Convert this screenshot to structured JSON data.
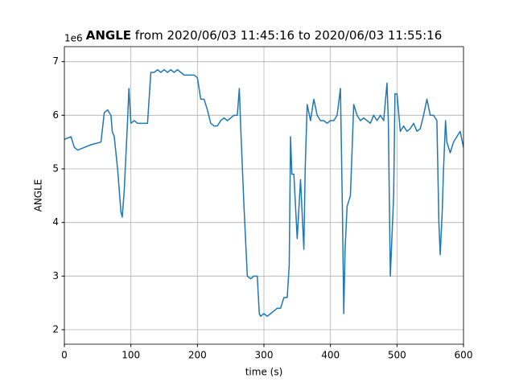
{
  "chart_data": {
    "type": "line",
    "title": {
      "name": "ANGLE",
      "text": "from 2020/06/03 11:45:16 to 2020/06/03 11:55:16"
    },
    "x_label": "time (s)",
    "y_label": "ANGLE",
    "y_offset": "1e6",
    "x": [
      0,
      10,
      15,
      20,
      30,
      40,
      55,
      60,
      65,
      70,
      72,
      75,
      80,
      85,
      87,
      90,
      95,
      97,
      100,
      105,
      110,
      115,
      120,
      125,
      130,
      135,
      140,
      145,
      150,
      155,
      160,
      165,
      170,
      175,
      180,
      185,
      190,
      195,
      200,
      205,
      210,
      215,
      220,
      225,
      230,
      235,
      240,
      245,
      250,
      255,
      260,
      263,
      265,
      270,
      275,
      280,
      285,
      290,
      293,
      295,
      300,
      305,
      310,
      315,
      320,
      325,
      330,
      335,
      338,
      340,
      342,
      345,
      350,
      355,
      360,
      362,
      365,
      370,
      375,
      380,
      385,
      390,
      395,
      400,
      405,
      410,
      415,
      418,
      420,
      422,
      425,
      430,
      435,
      440,
      445,
      450,
      455,
      460,
      465,
      470,
      475,
      480,
      485,
      487,
      490,
      495,
      497,
      500,
      505,
      510,
      515,
      520,
      525,
      530,
      535,
      540,
      545,
      550,
      555,
      560,
      563,
      565,
      568,
      570,
      573,
      575,
      580,
      585,
      590,
      595,
      600
    ],
    "series": [
      {
        "name": "ANGLE",
        "color": "#1f77b4",
        "values": [
          5.55,
          5.6,
          5.4,
          5.35,
          5.4,
          5.45,
          5.5,
          6.05,
          6.1,
          6.0,
          5.7,
          5.6,
          5.0,
          4.2,
          4.1,
          4.6,
          5.9,
          6.5,
          5.85,
          5.9,
          5.85,
          5.85,
          5.85,
          5.85,
          6.8,
          6.8,
          6.85,
          6.8,
          6.85,
          6.8,
          6.85,
          6.8,
          6.85,
          6.8,
          6.75,
          6.75,
          6.75,
          6.75,
          6.7,
          6.3,
          6.3,
          6.1,
          5.85,
          5.8,
          5.8,
          5.9,
          5.95,
          5.9,
          5.95,
          6.0,
          6.0,
          6.5,
          5.8,
          4.3,
          3.0,
          2.95,
          3.0,
          3.0,
          2.3,
          2.25,
          2.3,
          2.25,
          2.3,
          2.35,
          2.4,
          2.4,
          2.6,
          2.6,
          3.2,
          5.6,
          4.9,
          4.9,
          3.7,
          4.8,
          3.5,
          5.0,
          6.2,
          5.9,
          6.3,
          6.0,
          5.9,
          5.9,
          5.85,
          5.9,
          5.9,
          6.0,
          6.5,
          4.2,
          2.3,
          3.5,
          4.3,
          4.5,
          6.2,
          6.0,
          5.9,
          5.95,
          5.9,
          5.85,
          6.0,
          5.9,
          6.0,
          5.9,
          6.6,
          5.9,
          3.0,
          4.5,
          6.4,
          6.4,
          5.7,
          5.8,
          5.7,
          5.75,
          5.85,
          5.7,
          5.75,
          6.0,
          6.3,
          6.0,
          6.0,
          5.9,
          4.0,
          3.4,
          4.2,
          5.0,
          5.9,
          5.5,
          5.3,
          5.5,
          5.6,
          5.7,
          5.4
        ]
      }
    ],
    "xlim": [
      0,
      600
    ],
    "xticks": [
      0,
      100,
      200,
      300,
      400,
      500,
      600
    ],
    "ylim": [
      1.73,
      7.28
    ],
    "yticks": [
      2,
      3,
      4,
      5,
      6,
      7
    ],
    "grid": true
  }
}
